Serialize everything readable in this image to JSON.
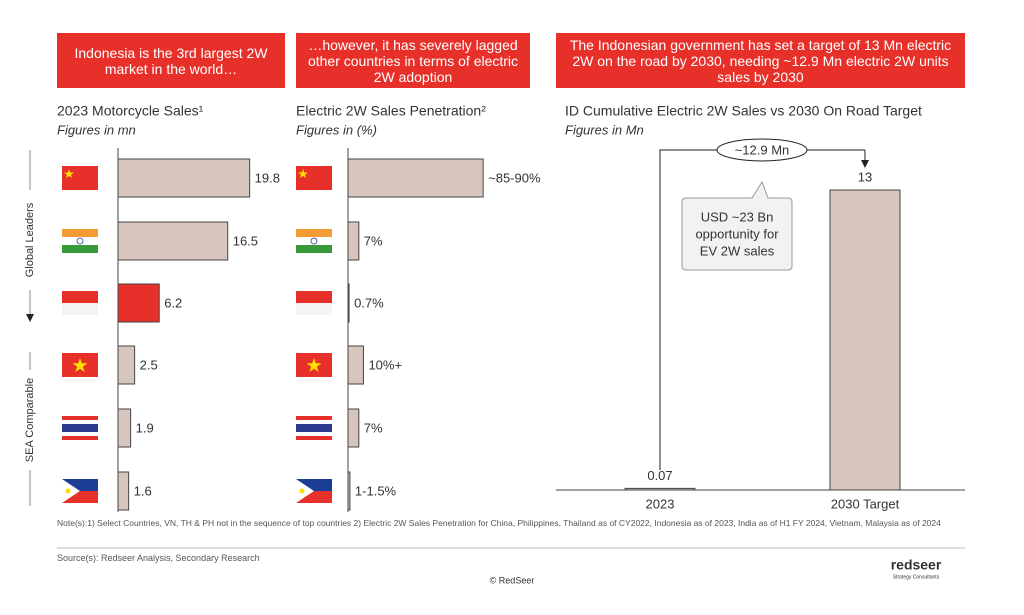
{
  "chart_data": [
    {
      "type": "hbar",
      "banner": "Indonesia is the 3rd largest 2W market in the world…",
      "title": "2023 Motorcycle Sales¹",
      "subtitle": "Figures in mn",
      "values": [
        19.8,
        16.5,
        6.2,
        2.5,
        1.9,
        1.6
      ],
      "colors": [
        "#d7c6be",
        "#d7c6be",
        "#e8302a",
        "#d7c6be",
        "#d7c6be",
        "#d7c6be"
      ],
      "xlim": [
        0,
        20
      ]
    },
    {
      "type": "hbar",
      "banner": "…however, it has severely lagged other countries in terms of electric 2W adoption",
      "title": "Electric 2W Sales Penetration²",
      "subtitle": "Figures in (%)",
      "values": [
        87.5,
        7,
        0.7,
        10,
        7,
        1.25
      ],
      "value_labels": [
        "~85-90%",
        "7%",
        "0.7%",
        "10%+",
        "7%",
        "1-1.5%"
      ],
      "colors": [
        "#d7c6be",
        "#d7c6be",
        "#d7c6be",
        "#d7c6be",
        "#d7c6be",
        "#d7c6be"
      ],
      "xlim": [
        0,
        90
      ]
    },
    {
      "type": "bar",
      "banner": "The Indonesian government has set a target of 13 Mn electric 2W on the road by 2030, needing ~12.9 Mn electric 2W units sales by 2030",
      "title": "ID Cumulative Electric 2W Sales vs 2030 On Road Target",
      "subtitle": "Figures in Mn",
      "categories": [
        "2023",
        "2030 Target"
      ],
      "values": [
        0.07,
        13
      ],
      "color": "#d7c6be",
      "ylim": [
        0,
        13
      ],
      "annotation": "~12.9 Mn",
      "callout": [
        "USD ~23 Bn",
        "opportunity for",
        "EV 2W sales"
      ]
    }
  ],
  "groups": [
    "Global Leaders",
    "SEA Comparable"
  ],
  "notes": "Note(s):1) Select Countries, VN, TH & PH not in the sequence of top countries 2) Electric 2W Sales Penetration for China, Philippines, Thailand as of CY2022, Indonesia as of 2023, India as of H1 FY 2024, Vietnam, Malaysia as of 2024",
  "source": "Source(s): Redseer Analysis, Secondary Research",
  "footer": "© RedSeer",
  "logo": "redseer",
  "logo_sub": "Strategy Consultants"
}
